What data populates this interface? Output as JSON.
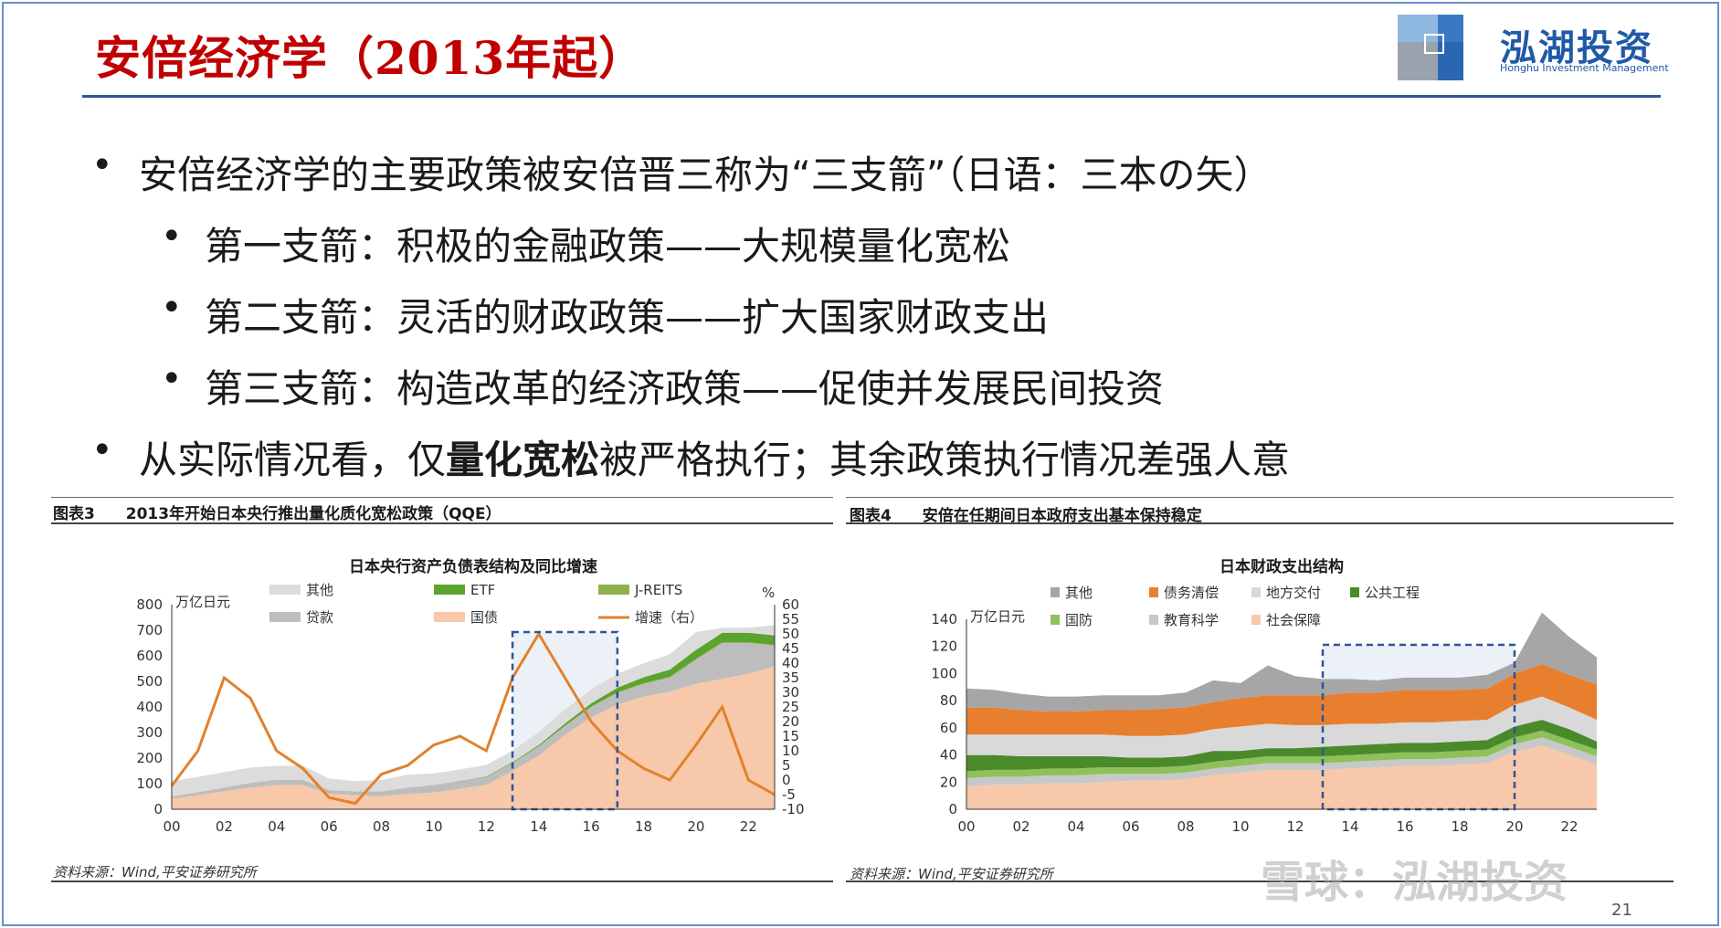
{
  "slide": {
    "title": "安倍经济学（2013年起）",
    "page_number": "21",
    "watermark": "雪球：泓湖投资",
    "logo": {
      "name": "泓湖投资",
      "sub": "Honghu Investment Management"
    }
  },
  "bullets": [
    {
      "level": 1,
      "text": "安倍经济学的主要政策被安倍晋三称为“三支箭”（日语：三本の矢）"
    },
    {
      "level": 2,
      "text": "第一支箭：积极的金融政策——大规模量化宽松"
    },
    {
      "level": 2,
      "text": "第二支箭：灵活的财政政策——扩大国家财政支出"
    },
    {
      "level": 2,
      "text": "第三支箭：构造改革的经济政策——促使并发展民间投资"
    },
    {
      "level": 1,
      "text_before": "从实际情况看，仅",
      "text_bold": "量化宽松",
      "text_after": "被严格执行；其余政策执行情况差强人意"
    }
  ],
  "figures": [
    {
      "label": "图表3",
      "caption": "2013年开始日本央行推出量化质化宽松政策（QQE）",
      "source": "资料来源：Wind,平安证券研究所"
    },
    {
      "label": "图表4",
      "caption": "安倍在任期间日本政府支出基本保持稳定",
      "source": "资料来源：Wind,平安证券研究所"
    }
  ],
  "chart_data": [
    {
      "type": "area",
      "title": "日本央行资产负债表结构及同比增速",
      "ylabel": "万亿日元",
      "y2label": "%",
      "ylim": [
        0,
        800
      ],
      "y_ticks": [
        0,
        100,
        200,
        300,
        400,
        500,
        600,
        700,
        800
      ],
      "y2lim": [
        -10,
        60
      ],
      "y2_ticks": [
        -10,
        -5,
        0,
        5,
        10,
        15,
        20,
        25,
        30,
        35,
        40,
        45,
        50,
        55,
        60
      ],
      "x_ticks": [
        "00",
        "02",
        "04",
        "06",
        "08",
        "10",
        "12",
        "14",
        "16",
        "18",
        "20",
        "22"
      ],
      "legend": [
        "其他",
        "ETF",
        "J-REITS",
        "贷款",
        "国债",
        "增速（右）"
      ],
      "colors": {
        "其他": "#dcdcdc",
        "ETF": "#5ba32f",
        "J-REITS": "#8fb04a",
        "贷款": "#bdbdbd",
        "国债": "#f8c8aa",
        "增速（右）": "#e0822b"
      },
      "x": [
        2000,
        2001,
        2002,
        2003,
        2004,
        2005,
        2006,
        2007,
        2008,
        2009,
        2010,
        2011,
        2012,
        2013,
        2014,
        2015,
        2016,
        2017,
        2018,
        2019,
        2020,
        2021,
        2022,
        2023
      ],
      "series": [
        {
          "name": "国债",
          "values": [
            40,
            55,
            70,
            85,
            95,
            95,
            60,
            55,
            50,
            60,
            65,
            80,
            95,
            150,
            210,
            290,
            360,
            410,
            440,
            460,
            490,
            510,
            530,
            560
          ]
        },
        {
          "name": "贷款",
          "values": [
            10,
            12,
            15,
            18,
            20,
            20,
            15,
            15,
            20,
            25,
            30,
            30,
            30,
            30,
            35,
            35,
            40,
            45,
            50,
            55,
            95,
            140,
            120,
            80
          ]
        },
        {
          "name": "J-REITS",
          "values": [
            0,
            0,
            0,
            0,
            0,
            0,
            0,
            0,
            0,
            0,
            0,
            0,
            1,
            1,
            1,
            2,
            2,
            2,
            3,
            3,
            3,
            3,
            3,
            3
          ]
        },
        {
          "name": "ETF",
          "values": [
            0,
            0,
            0,
            0,
            0,
            0,
            0,
            0,
            0,
            0,
            0,
            1,
            2,
            3,
            5,
            8,
            12,
            18,
            23,
            28,
            35,
            37,
            37,
            37
          ]
        },
        {
          "name": "其他",
          "values": [
            60,
            60,
            60,
            60,
            55,
            55,
            45,
            40,
            45,
            50,
            45,
            45,
            45,
            45,
            50,
            55,
            55,
            55,
            55,
            60,
            70,
            20,
            20,
            40
          ]
        },
        {
          "name": "增速（右）",
          "axis": "right",
          "values": [
            -2,
            10,
            35,
            28,
            10,
            4,
            -6,
            -8,
            2,
            5,
            12,
            15,
            10,
            35,
            50,
            35,
            20,
            10,
            4,
            0,
            12,
            25,
            0,
            -5
          ]
        }
      ],
      "highlight_box": [
        2013,
        2017
      ]
    },
    {
      "type": "area",
      "title": "日本财政支出结构",
      "ylabel": "万亿日元",
      "ylim": [
        0,
        140
      ],
      "y_ticks": [
        0,
        20,
        40,
        60,
        80,
        100,
        120,
        140
      ],
      "x_ticks": [
        "00",
        "02",
        "04",
        "06",
        "08",
        "10",
        "12",
        "14",
        "16",
        "18",
        "20",
        "22"
      ],
      "legend": [
        "其他",
        "债务清偿",
        "地方交付",
        "公共工程",
        "国防",
        "教育科学",
        "社会保障"
      ],
      "colors": {
        "其他": "#a6a6a6",
        "债务清偿": "#e87f2e",
        "地方交付": "#d9d9d9",
        "公共工程": "#4b8a2b",
        "国防": "#8ec15a",
        "教育科学": "#c8c8c8",
        "社会保障": "#f8c8aa"
      },
      "x": [
        2000,
        2001,
        2002,
        2003,
        2004,
        2005,
        2006,
        2007,
        2008,
        2009,
        2010,
        2011,
        2012,
        2013,
        2014,
        2015,
        2016,
        2017,
        2018,
        2019,
        2020,
        2021,
        2022,
        2023
      ],
      "series": [
        {
          "name": "社会保障",
          "values": [
            17,
            18,
            18,
            19,
            19,
            20,
            21,
            21,
            22,
            25,
            27,
            29,
            29,
            29,
            30,
            31,
            32,
            32,
            33,
            34,
            42,
            47,
            40,
            33
          ]
        },
        {
          "name": "教育科学",
          "values": [
            6,
            6,
            6,
            6,
            6,
            6,
            5,
            5,
            5,
            5,
            5,
            5,
            5,
            5,
            5,
            5,
            5,
            5,
            5,
            5,
            6,
            6,
            6,
            6
          ]
        },
        {
          "name": "国防",
          "values": [
            5,
            5,
            5,
            5,
            5,
            5,
            5,
            5,
            5,
            5,
            5,
            5,
            5,
            5,
            5,
            5,
            5,
            5,
            5,
            5,
            5,
            5,
            5,
            5
          ]
        },
        {
          "name": "公共工程",
          "values": [
            12,
            11,
            10,
            9,
            9,
            8,
            7,
            7,
            7,
            8,
            6,
            6,
            6,
            7,
            7,
            7,
            7,
            7,
            7,
            7,
            8,
            8,
            8,
            6
          ]
        },
        {
          "name": "地方交付",
          "values": [
            15,
            15,
            16,
            16,
            16,
            16,
            16,
            16,
            16,
            16,
            18,
            18,
            17,
            16,
            16,
            15,
            15,
            15,
            15,
            15,
            16,
            17,
            16,
            16
          ]
        },
        {
          "name": "债务清偿",
          "values": [
            20,
            20,
            18,
            17,
            17,
            18,
            19,
            20,
            20,
            20,
            21,
            21,
            22,
            22,
            23,
            23,
            24,
            24,
            23,
            23,
            23,
            24,
            24,
            26
          ]
        },
        {
          "name": "其他",
          "values": [
            14,
            13,
            12,
            11,
            11,
            11,
            11,
            10,
            11,
            16,
            11,
            22,
            14,
            12,
            10,
            9,
            9,
            9,
            9,
            10,
            8,
            38,
            28,
            20
          ]
        }
      ],
      "highlight_box": [
        2013,
        2020
      ]
    }
  ]
}
